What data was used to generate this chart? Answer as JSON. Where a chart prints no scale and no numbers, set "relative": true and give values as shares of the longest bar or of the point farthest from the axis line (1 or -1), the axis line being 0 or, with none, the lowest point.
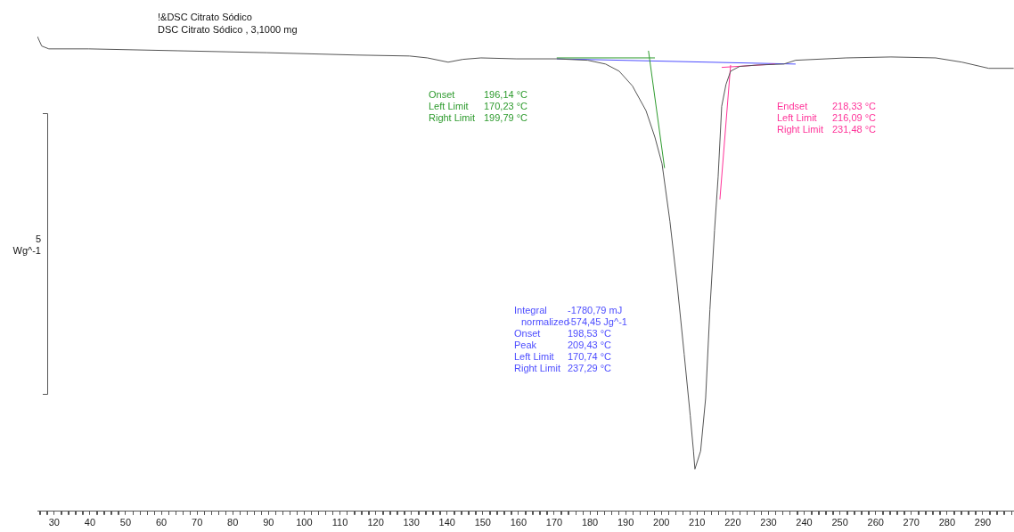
{
  "chart_data": {
    "type": "line",
    "title": "!&DSC Citrato Sódico",
    "subtitle": "DSC Citrato Sódico , 3,1000 mg",
    "ylabel": "Wg^-1",
    "relative": true,
    "grid": false,
    "legend": false,
    "marker": "none",
    "line_style": "solid",
    "xlim": [
      25.3,
      298.7
    ],
    "xticks": [
      {
        "value": 26,
        "label": null
      },
      {
        "value": 28,
        "label": null
      },
      30,
      {
        "value": 32,
        "label": null
      },
      {
        "value": 34,
        "label": null
      },
      {
        "value": 36,
        "label": null
      },
      {
        "value": 38,
        "label": null
      },
      40,
      {
        "value": 42,
        "label": null
      },
      {
        "value": 44,
        "label": null
      },
      {
        "value": 46,
        "label": null
      },
      {
        "value": 48,
        "label": null
      },
      50,
      {
        "value": 52,
        "label": null
      },
      {
        "value": 54,
        "label": null
      },
      {
        "value": 56,
        "label": null
      },
      {
        "value": 58,
        "label": null
      },
      60,
      {
        "value": 62,
        "label": null
      },
      {
        "value": 64,
        "label": null
      },
      {
        "value": 66,
        "label": null
      },
      {
        "value": 68,
        "label": null
      },
      70,
      {
        "value": 72,
        "label": null
      },
      {
        "value": 74,
        "label": null
      },
      {
        "value": 76,
        "label": null
      },
      {
        "value": 78,
        "label": null
      },
      80,
      {
        "value": 82,
        "label": null
      },
      {
        "value": 84,
        "label": null
      },
      {
        "value": 86,
        "label": null
      },
      {
        "value": 88,
        "label": null
      },
      90,
      {
        "value": 92,
        "label": null
      },
      {
        "value": 94,
        "label": null
      },
      {
        "value": 96,
        "label": null
      },
      {
        "value": 98,
        "label": null
      },
      100,
      {
        "value": 102,
        "label": null
      },
      {
        "value": 104,
        "label": null
      },
      {
        "value": 106,
        "label": null
      },
      {
        "value": 108,
        "label": null
      },
      110,
      {
        "value": 112,
        "label": null
      },
      {
        "value": 114,
        "label": null
      },
      {
        "value": 116,
        "label": null
      },
      {
        "value": 118,
        "label": null
      },
      120,
      {
        "value": 122,
        "label": null
      },
      {
        "value": 124,
        "label": null
      },
      {
        "value": 126,
        "label": null
      },
      {
        "value": 128,
        "label": null
      },
      130,
      {
        "value": 132,
        "label": null
      },
      {
        "value": 134,
        "label": null
      },
      {
        "value": 136,
        "label": null
      },
      {
        "value": 138,
        "label": null
      },
      140,
      {
        "value": 142,
        "label": null
      },
      {
        "value": 144,
        "label": null
      },
      {
        "value": 146,
        "label": null
      },
      {
        "value": 148,
        "label": null
      },
      150,
      {
        "value": 152,
        "label": null
      },
      {
        "value": 154,
        "label": null
      },
      {
        "value": 156,
        "label": null
      },
      {
        "value": 158,
        "label": null
      },
      160,
      {
        "value": 162,
        "label": null
      },
      {
        "value": 164,
        "label": null
      },
      {
        "value": 166,
        "label": null
      },
      {
        "value": 168,
        "label": null
      },
      170,
      {
        "value": 172,
        "label": null
      },
      {
        "value": 174,
        "label": null
      },
      {
        "value": 176,
        "label": null
      },
      {
        "value": 178,
        "label": null
      },
      180,
      {
        "value": 182,
        "label": null
      },
      {
        "value": 184,
        "label": null
      },
      {
        "value": 186,
        "label": null
      },
      {
        "value": 188,
        "label": null
      },
      190,
      {
        "value": 192,
        "label": null
      },
      {
        "value": 194,
        "label": null
      },
      {
        "value": 196,
        "label": null
      },
      {
        "value": 198,
        "label": null
      },
      200,
      {
        "value": 202,
        "label": null
      },
      {
        "value": 204,
        "label": null
      },
      {
        "value": 206,
        "label": null
      },
      {
        "value": 208,
        "label": null
      },
      210,
      {
        "value": 212,
        "label": null
      },
      {
        "value": 214,
        "label": null
      },
      {
        "value": 216,
        "label": null
      },
      {
        "value": 218,
        "label": null
      },
      220,
      {
        "value": 222,
        "label": null
      },
      {
        "value": 224,
        "label": null
      },
      {
        "value": 226,
        "label": null
      },
      {
        "value": 228,
        "label": null
      },
      230,
      {
        "value": 232,
        "label": null
      },
      {
        "value": 234,
        "label": null
      },
      {
        "value": 236,
        "label": null
      },
      {
        "value": 238,
        "label": null
      },
      240,
      {
        "value": 242,
        "label": null
      },
      {
        "value": 244,
        "label": null
      },
      {
        "value": 246,
        "label": null
      },
      {
        "value": 248,
        "label": null
      },
      250,
      {
        "value": 252,
        "label": null
      },
      {
        "value": 254,
        "label": null
      },
      {
        "value": 256,
        "label": null
      },
      {
        "value": 258,
        "label": null
      },
      260,
      {
        "value": 262,
        "label": null
      },
      {
        "value": 264,
        "label": null
      },
      {
        "value": 266,
        "label": null
      },
      {
        "value": 268,
        "label": null
      },
      270,
      {
        "value": 272,
        "label": null
      },
      {
        "value": 274,
        "label": null
      },
      {
        "value": 276,
        "label": null
      },
      {
        "value": 278,
        "label": null
      },
      280,
      {
        "value": 282,
        "label": null
      },
      {
        "value": 284,
        "label": null
      },
      {
        "value": 286,
        "label": null
      },
      {
        "value": 288,
        "label": null
      },
      290,
      {
        "value": 292,
        "label": null
      },
      {
        "value": 294,
        "label": null
      },
      {
        "value": 296,
        "label": null
      },
      {
        "value": 298,
        "label": null
      }
    ],
    "x": [
      25.3,
      26.5,
      28.5,
      39.7,
      64.7,
      89.6,
      114.6,
      129.5,
      134.5,
      140.3,
      144.5,
      149.5,
      159.5,
      170.7,
      179.4,
      184.4,
      188.2,
      191.9,
      195.7,
      198.2,
      200.2,
      202.4,
      204.4,
      206.4,
      208.1,
      209.0,
      209.4,
      211.0,
      212.4,
      213.6,
      214.9,
      215.9,
      216.9,
      218.1,
      219.4,
      221.9,
      226.9,
      234.3,
      237.6,
      251.8,
      264.3,
      276.8,
      284.2,
      291.7,
      298.7
    ],
    "series": [
      {
        "color": "#555555",
        "values": [
          1,
          0.98,
          0.974,
          0.974,
          0.97,
          0.966,
          0.961,
          0.959,
          0.955,
          0.946,
          0.952,
          0.955,
          0.953,
          0.953,
          0.95,
          0.942,
          0.927,
          0.896,
          0.844,
          0.788,
          0.732,
          0.611,
          0.48,
          0.331,
          0.201,
          0.127,
          0.089,
          0.127,
          0.238,
          0.425,
          0.592,
          0.704,
          0.853,
          0.899,
          0.927,
          0.937,
          0.94,
          0.942,
          0.95,
          0.955,
          0.957,
          0.955,
          0.946,
          0.933,
          0.933
        ]
      },
      {
        "color": "#2e9b2e",
        "x": [
          170.7,
          198.2
        ],
        "values": [
          0.955,
          0.955
        ]
      },
      {
        "color": "#2e9b2e",
        "x": [
          196.4,
          200.9
        ],
        "values": [
          0.97,
          0.723
        ]
      },
      {
        "color": "#ff3399",
        "x": [
          216.9,
          231.8
        ],
        "values": [
          0.935,
          0.942
        ]
      },
      {
        "color": "#ff3399",
        "x": [
          219.4,
          216.4
        ],
        "values": [
          0.94,
          0.657
        ]
      },
      {
        "color": "#4d4dff",
        "x": [
          170.7,
          237.6
        ],
        "values": [
          0.953,
          0.942
        ]
      }
    ],
    "annotations": [
      "Onset",
      "196,14 °C",
      "Left Limit",
      "170,23 °C",
      "Right Limit",
      "199,79 °C",
      "Endset",
      "218,33 °C",
      "Left Limit",
      "216,09 °C",
      "Right Limit",
      "231,48 °C",
      "Integral",
      "-1780,79 mJ",
      "normalized",
      "-574,45 Jg^-1",
      "Onset",
      "198,53 °C",
      "Peak",
      "209,43 °C",
      "Left Limit",
      "170,74 °C",
      "Right Limit",
      "237,29 °C",
      "5"
    ]
  }
}
